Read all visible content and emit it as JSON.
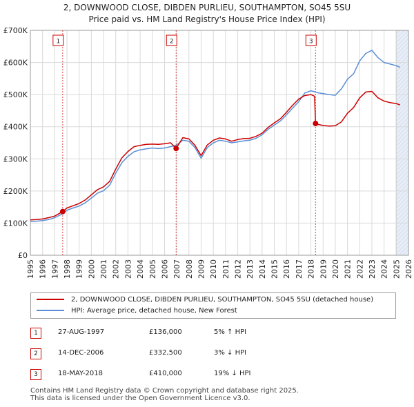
{
  "title_line1": "2, DOWNWOOD CLOSE, DIBDEN PURLIEU, SOUTHAMPTON, SO45 5SU",
  "title_line2": "Price paid vs. HM Land Registry's House Price Index (HPI)",
  "colors": {
    "property": "#cc0000",
    "hpi": "#5b8ed6",
    "shade": "#e8eef8",
    "grid": "#d9d9d9",
    "marker_line": "#cc0000"
  },
  "legend": {
    "property_label": "2, DOWNWOOD CLOSE, DIBDEN PURLIEU, SOUTHAMPTON, SO45 5SU (detached house)",
    "hpi_label": "HPI: Average price, detached house, New Forest"
  },
  "sales": [
    {
      "num": "1",
      "date": "27-AUG-1997",
      "price": "£136,000",
      "hpi": "5% ↑ HPI"
    },
    {
      "num": "2",
      "date": "14-DEC-2006",
      "price": "£332,500",
      "hpi": "3% ↓ HPI"
    },
    {
      "num": "3",
      "date": "18-MAY-2018",
      "price": "£410,000",
      "hpi": "19% ↓ HPI"
    }
  ],
  "footer_line1": "Contains HM Land Registry data © Crown copyright and database right 2025.",
  "footer_line2": "This data is licensed under the Open Government Licence v3.0.",
  "chart_data": {
    "type": "line",
    "title": "2, DOWNWOOD CLOSE, DIBDEN PURLIEU, SOUTHAMPTON, SO45 5SU — Price paid vs. HM Land Registry's House Price Index (HPI)",
    "xlabel": "",
    "ylabel": "",
    "xlim": [
      1995,
      2026
    ],
    "ylim": [
      0,
      700000
    ],
    "x_ticks": [
      "1995",
      "1996",
      "1997",
      "1998",
      "1999",
      "2000",
      "2001",
      "2002",
      "2003",
      "2004",
      "2005",
      "2006",
      "2007",
      "2008",
      "2009",
      "2010",
      "2011",
      "2012",
      "2013",
      "2014",
      "2015",
      "2016",
      "2017",
      "2018",
      "2019",
      "2020",
      "2021",
      "2022",
      "2023",
      "2024",
      "2025",
      "2026"
    ],
    "y_ticks": [
      {
        "value": 0,
        "label": "£0"
      },
      {
        "value": 100000,
        "label": "£100K"
      },
      {
        "value": 200000,
        "label": "£200K"
      },
      {
        "value": 300000,
        "label": "£300K"
      },
      {
        "value": 400000,
        "label": "£400K"
      },
      {
        "value": 500000,
        "label": "£500K"
      },
      {
        "value": 600000,
        "label": "£600K"
      },
      {
        "value": 700000,
        "label": "£700K"
      }
    ],
    "grid": true,
    "future_shade_from": 2025.0,
    "sale_markers": [
      {
        "label": "1",
        "x": 1997.65,
        "y": 136000
      },
      {
        "label": "2",
        "x": 2006.95,
        "y": 332500
      },
      {
        "label": "3",
        "x": 2018.38,
        "y": 410000
      }
    ],
    "series": [
      {
        "name": "HPI: Average price, detached house, New Forest",
        "x": [
          1995.0,
          1995.5,
          1996.0,
          1996.5,
          1997.0,
          1997.65,
          1998.0,
          1998.5,
          1999.0,
          1999.5,
          2000.0,
          2000.5,
          2001.0,
          2001.5,
          2002.0,
          2002.5,
          2003.0,
          2003.5,
          2004.0,
          2004.5,
          2005.0,
          2005.5,
          2006.0,
          2006.5,
          2006.95,
          2007.5,
          2008.0,
          2008.5,
          2009.0,
          2009.5,
          2010.0,
          2010.5,
          2011.0,
          2011.5,
          2012.0,
          2012.5,
          2013.0,
          2013.5,
          2014.0,
          2014.5,
          2015.0,
          2015.5,
          2016.0,
          2016.5,
          2017.0,
          2017.5,
          2018.0,
          2018.38,
          2018.5,
          2019.0,
          2019.5,
          2020.0,
          2020.5,
          2021.0,
          2021.5,
          2022.0,
          2022.5,
          2023.0,
          2023.5,
          2024.0,
          2024.5,
          2025.0,
          2025.3
        ],
        "values": [
          105000,
          106000,
          108000,
          111000,
          117000,
          129000,
          140000,
          147000,
          153000,
          163000,
          178000,
          193000,
          201000,
          218000,
          255000,
          288000,
          308000,
          322000,
          328000,
          331000,
          334000,
          332000,
          334000,
          338000,
          342000,
          358000,
          355000,
          335000,
          302000,
          335000,
          350000,
          358000,
          355000,
          350000,
          353000,
          356000,
          358000,
          364000,
          375000,
          392000,
          405000,
          418000,
          437000,
          458000,
          478000,
          505000,
          512000,
          508000,
          506000,
          503000,
          500000,
          498000,
          518000,
          548000,
          565000,
          605000,
          628000,
          638000,
          615000,
          600000,
          595000,
          590000,
          585000
        ]
      },
      {
        "name": "2, DOWNWOOD CLOSE, DIBDEN PURLIEU, SOUTHAMPTON, SO45 5SU (detached house)",
        "x": [
          1995.0,
          1995.5,
          1996.0,
          1996.5,
          1997.0,
          1997.65,
          1998.0,
          1998.5,
          1999.0,
          1999.5,
          2000.0,
          2000.5,
          2001.0,
          2001.5,
          2002.0,
          2002.5,
          2003.0,
          2003.5,
          2004.0,
          2004.5,
          2005.0,
          2005.5,
          2006.0,
          2006.5,
          2006.95,
          2007.5,
          2008.0,
          2008.5,
          2009.0,
          2009.5,
          2010.0,
          2010.5,
          2011.0,
          2011.5,
          2012.0,
          2012.5,
          2013.0,
          2013.5,
          2014.0,
          2014.5,
          2015.0,
          2015.5,
          2016.0,
          2016.5,
          2017.0,
          2017.5,
          2018.0,
          2018.3,
          2018.38,
          2018.5,
          2019.0,
          2019.5,
          2020.0,
          2020.5,
          2021.0,
          2021.5,
          2022.0,
          2022.5,
          2023.0,
          2023.5,
          2024.0,
          2024.5,
          2025.0,
          2025.3
        ],
        "values": [
          110000,
          111000,
          113000,
          117000,
          122000,
          136000,
          147000,
          154000,
          161000,
          172000,
          188000,
          204000,
          213000,
          230000,
          268000,
          303000,
          323000,
          338000,
          342000,
          345000,
          346000,
          345000,
          347000,
          350000,
          332500,
          366000,
          362000,
          342000,
          310000,
          343000,
          358000,
          365000,
          362000,
          355000,
          360000,
          363000,
          364000,
          370000,
          380000,
          398000,
          412000,
          425000,
          445000,
          467000,
          486000,
          497000,
          500000,
          495000,
          410000,
          408000,
          404000,
          402000,
          403000,
          415000,
          442000,
          460000,
          490000,
          508000,
          510000,
          490000,
          480000,
          475000,
          472000,
          468000
        ]
      }
    ]
  }
}
